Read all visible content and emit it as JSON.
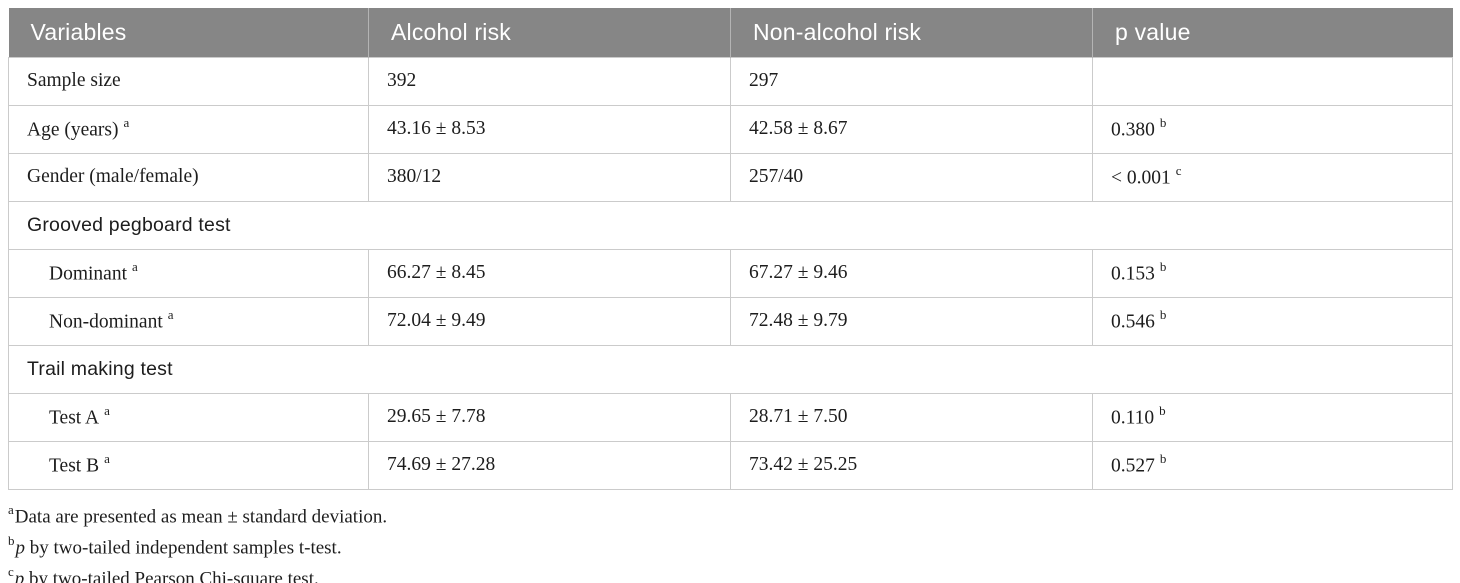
{
  "table": {
    "columns": [
      {
        "label": "Variables"
      },
      {
        "label": "Alcohol risk"
      },
      {
        "label": "Non-alcohol risk"
      },
      {
        "label": "p value"
      }
    ],
    "rows": [
      {
        "type": "data",
        "indent": false,
        "variable": "Sample size",
        "variable_sup": "",
        "alcohol": "392",
        "non_alcohol": "297",
        "p_value": "",
        "p_sup": ""
      },
      {
        "type": "data",
        "indent": false,
        "variable": "Age (years)",
        "variable_sup": "a",
        "alcohol": "43.16 ± 8.53",
        "non_alcohol": "42.58 ± 8.67",
        "p_value": "0.380",
        "p_sup": "b"
      },
      {
        "type": "data",
        "indent": false,
        "variable": "Gender (male/female)",
        "variable_sup": "",
        "alcohol": "380/12",
        "non_alcohol": "257/40",
        "p_value": "< 0.001",
        "p_sup": "c"
      },
      {
        "type": "section",
        "variable": "Grooved pegboard test"
      },
      {
        "type": "data",
        "indent": true,
        "variable": "Dominant",
        "variable_sup": "a",
        "alcohol": "66.27 ± 8.45",
        "non_alcohol": "67.27 ± 9.46",
        "p_value": "0.153",
        "p_sup": "b"
      },
      {
        "type": "data",
        "indent": true,
        "variable": "Non-dominant",
        "variable_sup": "a",
        "alcohol": "72.04 ± 9.49",
        "non_alcohol": "72.48 ± 9.79",
        "p_value": "0.546",
        "p_sup": "b"
      },
      {
        "type": "section",
        "variable": "Trail making test"
      },
      {
        "type": "data",
        "indent": true,
        "variable": "Test A",
        "variable_sup": "a",
        "alcohol": "29.65 ± 7.78",
        "non_alcohol": "28.71 ± 7.50",
        "p_value": "0.110",
        "p_sup": "b"
      },
      {
        "type": "data",
        "indent": true,
        "variable": "Test B",
        "variable_sup": "a",
        "alcohol": "74.69 ± 27.28",
        "non_alcohol": "73.42 ± 25.25",
        "p_value": "0.527",
        "p_sup": "b"
      }
    ]
  },
  "footnotes": [
    {
      "sup": "a",
      "lead_italic": "",
      "text": "Data are presented as mean ± standard deviation."
    },
    {
      "sup": "b",
      "lead_italic": "p",
      "text": " by two-tailed independent samples t-test."
    },
    {
      "sup": "c",
      "lead_italic": "p",
      "text": " by two-tailed Pearson Chi-square test."
    }
  ],
  "colors": {
    "header_background": "#868686",
    "header_text": "#ffffff",
    "section_background": "#dddddd",
    "body_text": "#1d1d1d",
    "border": "#cbcbcb"
  }
}
